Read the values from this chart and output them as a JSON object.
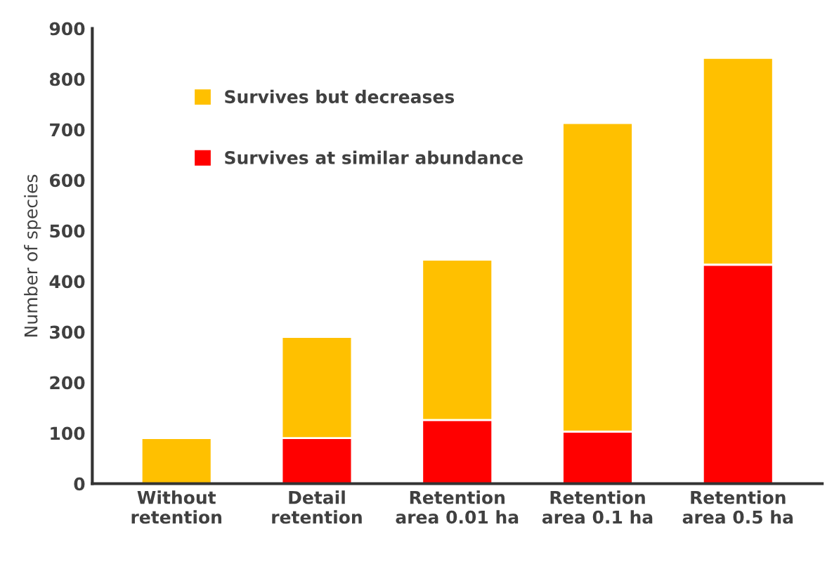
{
  "chart_data": {
    "type": "bar",
    "stacked": true,
    "ylabel": "Number of species",
    "categories": [
      "Without\nretention",
      "Detail\nretention",
      "Retention\narea 0.01 ha",
      "Retention\narea 0.1 ha",
      "Retention\narea 0.5 ha"
    ],
    "series": [
      {
        "name": "Survives at similar abundance",
        "color": "#ff0000",
        "values": [
          0,
          90,
          126,
          103,
          433
        ]
      },
      {
        "name": "Survives but decreases",
        "color": "#ffc000",
        "values": [
          90,
          200,
          317,
          610,
          409
        ]
      }
    ],
    "ylim": [
      0,
      900
    ],
    "yticks": [
      0,
      100,
      200,
      300,
      400,
      500,
      600,
      700,
      800,
      900
    ],
    "grid": false,
    "legend": "top left"
  }
}
